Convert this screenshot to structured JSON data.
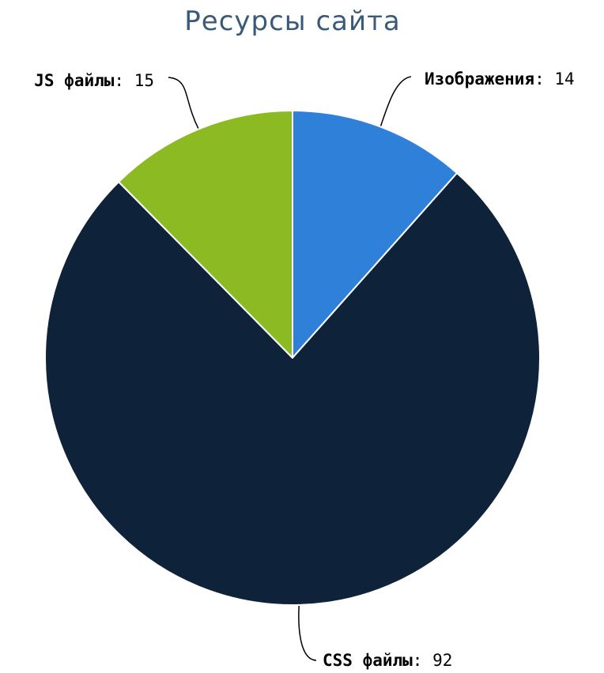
{
  "chart_data": {
    "type": "pie",
    "title": "Ресурсы сайта",
    "slices": [
      {
        "label": "Изображения",
        "value": 14,
        "color": "#2f80d8"
      },
      {
        "label": "CSS файлы",
        "value": 92,
        "color": "#0e223a"
      },
      {
        "label": "JS файлы",
        "value": 15,
        "color": "#8cba23"
      }
    ],
    "start_angle_deg": 0,
    "direction": "clockwise",
    "title_color": "#3a5a7a",
    "label_separator": ":"
  }
}
